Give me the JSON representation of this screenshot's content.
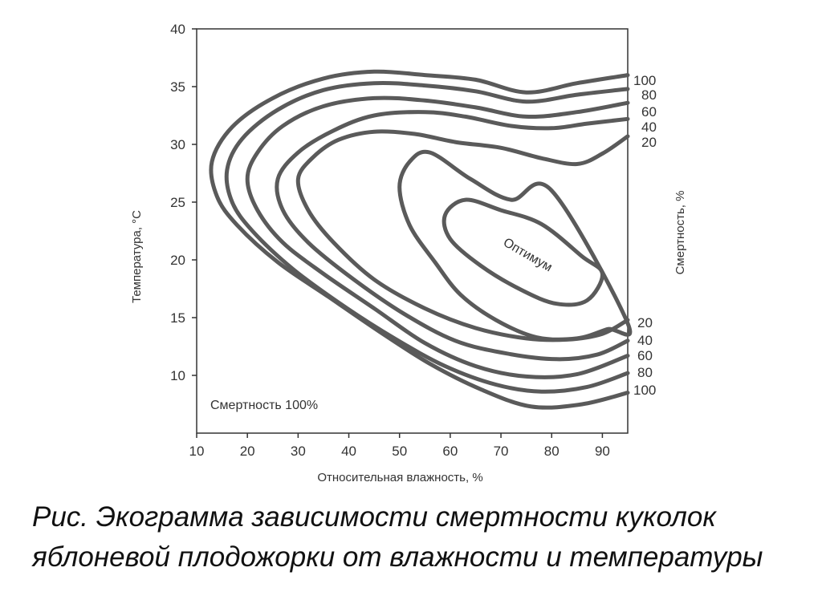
{
  "caption": "Рис. Экограмма зависимости смертности куколок яблоневой плодожорки от влажности и температуры",
  "chart_data": {
    "type": "contour",
    "xlabel": "Относительная влажность, %",
    "ylabel": "Температура, °C",
    "right_label": "Смертность, %",
    "xlim": [
      10,
      95
    ],
    "ylim": [
      5,
      40
    ],
    "x_ticks": [
      10,
      20,
      30,
      40,
      50,
      60,
      70,
      80,
      90
    ],
    "y_ticks": [
      10,
      15,
      20,
      25,
      30,
      35,
      40
    ],
    "region_label_low": "Смертность 100%",
    "optimum_label": "Оптимум",
    "line_color": "#5a5a5a",
    "contours": [
      {
        "level": "100",
        "points": [
          [
            95,
            36.0
          ],
          [
            85,
            35.3
          ],
          [
            75,
            34.5
          ],
          [
            65,
            35.6
          ],
          [
            55,
            36.0
          ],
          [
            45,
            36.3
          ],
          [
            35,
            35.7
          ],
          [
            25,
            34.0
          ],
          [
            17,
            31.5
          ],
          [
            13,
            28.5
          ],
          [
            14,
            25.5
          ],
          [
            18,
            23.0
          ],
          [
            26,
            19.8
          ],
          [
            36,
            16.8
          ],
          [
            46,
            13.8
          ],
          [
            56,
            11.0
          ],
          [
            66,
            8.8
          ],
          [
            76,
            7.3
          ],
          [
            86,
            7.5
          ],
          [
            95,
            8.5
          ]
        ]
      },
      {
        "level": "80",
        "points": [
          [
            95,
            34.8
          ],
          [
            85,
            34.3
          ],
          [
            75,
            33.7
          ],
          [
            65,
            34.6
          ],
          [
            55,
            35.1
          ],
          [
            45,
            35.3
          ],
          [
            35,
            34.7
          ],
          [
            26,
            33.0
          ],
          [
            19,
            30.5
          ],
          [
            16,
            27.8
          ],
          [
            17,
            25.0
          ],
          [
            21,
            22.5
          ],
          [
            29,
            19.2
          ],
          [
            39,
            16.0
          ],
          [
            49,
            13.2
          ],
          [
            59,
            10.8
          ],
          [
            69,
            9.2
          ],
          [
            78,
            8.6
          ],
          [
            87,
            9.0
          ],
          [
            95,
            10.2
          ]
        ]
      },
      {
        "level": "60",
        "points": [
          [
            95,
            33.6
          ],
          [
            85,
            32.8
          ],
          [
            75,
            32.4
          ],
          [
            65,
            33.2
          ],
          [
            55,
            33.8
          ],
          [
            45,
            34.0
          ],
          [
            35,
            33.3
          ],
          [
            27,
            31.6
          ],
          [
            22,
            29.3
          ],
          [
            20,
            27.0
          ],
          [
            22,
            24.3
          ],
          [
            27,
            21.5
          ],
          [
            35,
            18.8
          ],
          [
            45,
            15.8
          ],
          [
            55,
            12.8
          ],
          [
            65,
            10.8
          ],
          [
            75,
            9.9
          ],
          [
            85,
            10.1
          ],
          [
            95,
            11.7
          ]
        ]
      },
      {
        "level": "40",
        "points": [
          [
            95,
            32.2
          ],
          [
            87,
            31.8
          ],
          [
            80,
            31.4
          ],
          [
            72,
            31.6
          ],
          [
            63,
            32.4
          ],
          [
            55,
            32.8
          ],
          [
            45,
            32.5
          ],
          [
            37,
            31.2
          ],
          [
            30,
            29.3
          ],
          [
            26,
            27.0
          ],
          [
            27,
            24.3
          ],
          [
            32,
            21.5
          ],
          [
            41,
            18.3
          ],
          [
            51,
            15.3
          ],
          [
            61,
            13.0
          ],
          [
            71,
            11.9
          ],
          [
            81,
            11.4
          ],
          [
            89,
            11.8
          ],
          [
            95,
            13.0
          ]
        ]
      },
      {
        "level": "20",
        "points": [
          [
            95,
            30.7
          ],
          [
            90,
            29.2
          ],
          [
            85,
            28.3
          ],
          [
            78,
            28.8
          ],
          [
            70,
            29.7
          ],
          [
            61,
            30.2
          ],
          [
            53,
            30.9
          ],
          [
            45,
            31.1
          ],
          [
            38,
            30.4
          ],
          [
            33,
            28.9
          ],
          [
            30,
            27.0
          ],
          [
            32,
            24.3
          ],
          [
            37,
            21.5
          ],
          [
            45,
            18.3
          ],
          [
            55,
            15.8
          ],
          [
            65,
            14.1
          ],
          [
            75,
            13.2
          ],
          [
            83,
            13.1
          ],
          [
            90,
            13.6
          ],
          [
            95,
            14.8
          ]
        ]
      },
      {
        "level": "",
        "closed": true,
        "points": [
          [
            80,
            26.0
          ],
          [
            72,
            25.2
          ],
          [
            64,
            27.0
          ],
          [
            56,
            29.3
          ],
          [
            52,
            28.5
          ],
          [
            50,
            26.3
          ],
          [
            52,
            23.0
          ],
          [
            57,
            19.8
          ],
          [
            62,
            17.0
          ],
          [
            69,
            14.8
          ],
          [
            77,
            13.3
          ],
          [
            85,
            13.2
          ],
          [
            91,
            14.0
          ],
          [
            95,
            14.5
          ]
        ]
      },
      {
        "level": "",
        "closed": true,
        "points": [
          [
            78,
            23.1
          ],
          [
            86,
            20.3
          ],
          [
            90,
            18.8
          ],
          [
            87,
            16.5
          ],
          [
            81,
            16.2
          ],
          [
            74,
            17.4
          ],
          [
            66,
            19.5
          ],
          [
            60,
            21.8
          ],
          [
            59,
            23.9
          ],
          [
            63,
            25.2
          ],
          [
            70,
            24.3
          ]
        ]
      }
    ],
    "right_labels_top": [
      "100",
      "80",
      "60",
      "40",
      "20"
    ],
    "right_labels_bottom": [
      "20",
      "40",
      "60",
      "80",
      "100"
    ]
  }
}
